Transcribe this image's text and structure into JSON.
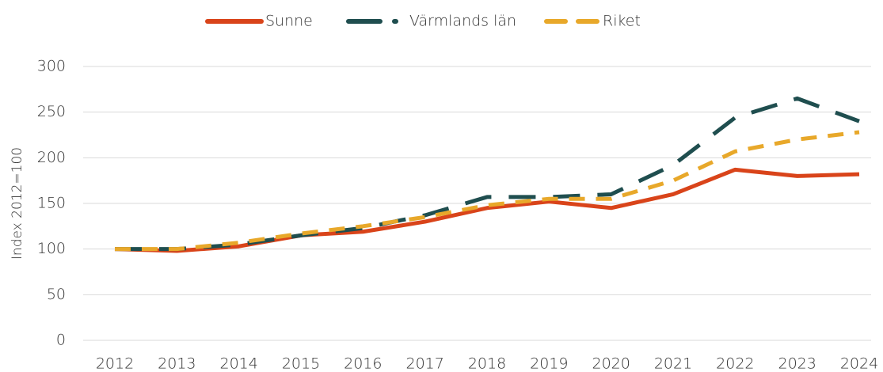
{
  "chart_data": {
    "type": "line",
    "y_label": "Index 2012=100",
    "x": [
      "2012",
      "2013",
      "2014",
      "2015",
      "2016",
      "2017",
      "2018",
      "2019",
      "2020",
      "2021",
      "2022",
      "2023",
      "2024"
    ],
    "series": [
      {
        "name": "Sunne",
        "color": "#d9441a",
        "dash": "solid",
        "values": [
          100,
          98,
          103,
          115,
          119,
          130,
          145,
          152,
          145,
          160,
          187,
          180,
          182
        ]
      },
      {
        "name": "Värmlands län",
        "color": "#1f4e4f",
        "dash": "long-dash",
        "values": [
          100,
          100,
          105,
          115,
          123,
          137,
          157,
          157,
          160,
          192,
          244,
          265,
          240
        ]
      },
      {
        "name": "Riket",
        "color": "#e8a82a",
        "dash": "dash",
        "values": [
          100,
          100,
          107,
          117,
          125,
          135,
          148,
          155,
          155,
          175,
          207,
          220,
          228
        ]
      }
    ],
    "ylim": [
      0,
      300
    ],
    "yticks": [
      0,
      50,
      100,
      150,
      200,
      250,
      300
    ],
    "grid": true,
    "legend": "top"
  }
}
